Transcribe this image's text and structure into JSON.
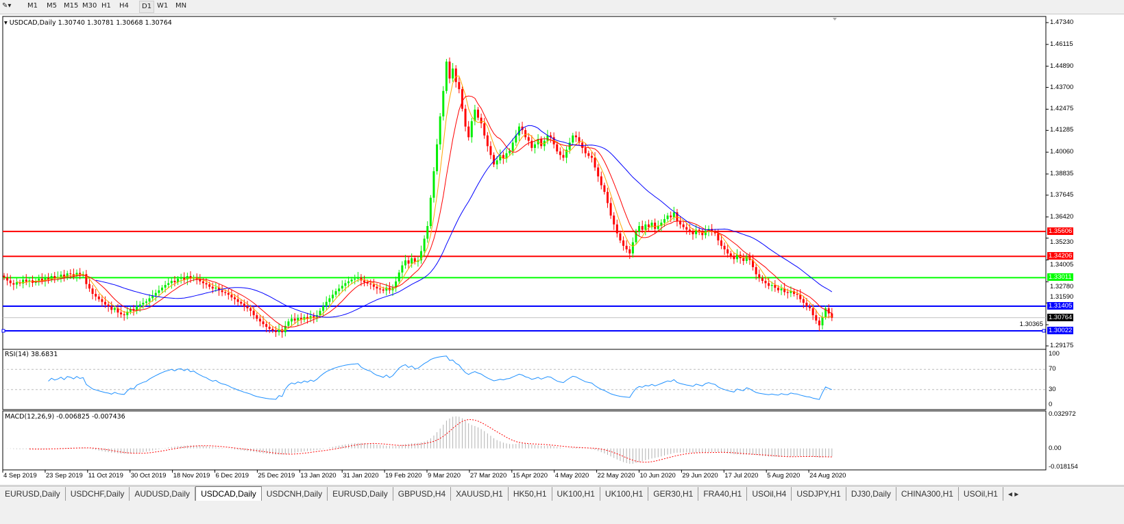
{
  "toolbar": {
    "timeframes": [
      "M1",
      "M5",
      "M15",
      "M30",
      "H1",
      "H4",
      "D1",
      "W1",
      "MN"
    ],
    "active": "D1"
  },
  "chart": {
    "header": "USDCAD,Daily  1.30740 1.30781 1.30668 1.30764",
    "price_axis": [
      "1.47340",
      "1.46115",
      "1.44890",
      "1.43700",
      "1.42475",
      "1.41285",
      "1.40060",
      "1.38835",
      "1.37645",
      "1.36420",
      "1.35230",
      "1.34005",
      "1.32780",
      "1.31590",
      "1.30365",
      "1.29175"
    ],
    "hlines": [
      {
        "value": "1.35606",
        "color": "#ff0000"
      },
      {
        "value": "1.34206",
        "color": "#ff0000"
      },
      {
        "value": "1.33011",
        "color": "#00ff00"
      },
      {
        "value": "1.31405",
        "color": "#0000ff"
      },
      {
        "value": "1.30022",
        "color": "#0000ff"
      }
    ],
    "current_price": "1.30764",
    "colors": {
      "bull": "#00ee00",
      "bear": "#ff0000",
      "ma_fast": "#ffa500",
      "ma_mid": "#ff0000",
      "ma_slow": "#0000ff"
    },
    "dates": [
      "4 Sep 2019",
      "23 Sep 2019",
      "11 Oct 2019",
      "30 Oct 2019",
      "18 Nov 2019",
      "6 Dec 2019",
      "25 Dec 2019",
      "13 Jan 2020",
      "31 Jan 2020",
      "19 Feb 2020",
      "9 Mar 2020",
      "27 Mar 2020",
      "15 Apr 2020",
      "4 May 2020",
      "22 May 2020",
      "10 Jun 2020",
      "29 Jun 2020",
      "17 Jul 2020",
      "5 Aug 2020",
      "24 Aug 2020"
    ]
  },
  "rsi": {
    "label": "RSI(14) 38.6831",
    "axis": [
      "100",
      "70",
      "30",
      "0"
    ]
  },
  "macd": {
    "label": "MACD(12,26,9) -0.006825 -0.007436",
    "axis": [
      "0.032972",
      "0.00",
      "-0.018154"
    ]
  },
  "chart_data": {
    "type": "candlestick",
    "symbol": "USDCAD",
    "timeframe": "Daily",
    "ylim": [
      1.29175,
      1.4734
    ],
    "closes": [
      1.3302,
      1.3285,
      1.327,
      1.3262,
      1.3275,
      1.3268,
      1.329,
      1.3278,
      1.3286,
      1.3272,
      1.3283,
      1.3295,
      1.3282,
      1.33,
      1.329,
      1.331,
      1.3298,
      1.3305,
      1.3318,
      1.3302,
      1.3325,
      1.3321,
      1.331,
      1.3328,
      1.3315,
      1.3321,
      1.3265,
      1.324,
      1.321,
      1.3195,
      1.318,
      1.3165,
      1.315,
      1.314,
      1.312,
      1.313,
      1.3105,
      1.3095,
      1.309,
      1.311,
      1.3125,
      1.3115,
      1.314,
      1.315,
      1.316,
      1.3167,
      1.3185,
      1.32,
      1.3215,
      1.323,
      1.3245,
      1.326,
      1.327,
      1.3283,
      1.3275,
      1.3295,
      1.33,
      1.329,
      1.331,
      1.3295,
      1.3302,
      1.329,
      1.328,
      1.327,
      1.3263,
      1.325,
      1.324,
      1.3245,
      1.323,
      1.322,
      1.3215,
      1.3205,
      1.319,
      1.318,
      1.3165,
      1.3155,
      1.314,
      1.3129,
      1.3115,
      1.309,
      1.307,
      1.3055,
      1.304,
      1.3025,
      1.3013,
      1.3005,
      1.2995,
      1.301,
      1.2994,
      1.303,
      1.3055,
      1.3071,
      1.306,
      1.3075,
      1.3065,
      1.308,
      1.307,
      1.3085,
      1.3075,
      1.309,
      1.3115,
      1.314,
      1.3165,
      1.3185,
      1.3205,
      1.3225,
      1.324,
      1.3255,
      1.327,
      1.328,
      1.329,
      1.3295,
      1.3302,
      1.3285,
      1.3275,
      1.3268,
      1.3263,
      1.325,
      1.324,
      1.3235,
      1.3228,
      1.3245,
      1.323,
      1.3244,
      1.328,
      1.333,
      1.337,
      1.3398,
      1.338,
      1.341,
      1.339,
      1.3398,
      1.345,
      1.352,
      1.3591,
      1.375,
      1.3899,
      1.405,
      1.4207,
      1.435,
      1.4515,
      1.442,
      1.4476,
      1.44,
      1.436,
      1.425,
      1.415,
      1.409,
      1.418,
      1.4245,
      1.42,
      1.4168,
      1.41,
      1.404,
      1.399,
      1.3937,
      1.396,
      1.399,
      1.397,
      1.4,
      1.4014,
      1.406,
      1.41,
      1.415,
      1.413,
      1.409,
      1.407,
      1.403,
      1.405,
      1.408,
      1.404,
      1.407,
      1.41,
      1.409,
      1.405,
      1.401,
      1.399,
      1.3975,
      1.402,
      1.406,
      1.41,
      1.409,
      1.406,
      1.403,
      1.4,
      1.3985,
      1.3975,
      1.392,
      1.387,
      1.382,
      1.3783,
      1.372,
      1.365,
      1.36,
      1.355,
      1.351,
      1.348,
      1.346,
      1.3437,
      1.35,
      1.356,
      1.3591,
      1.357,
      1.36,
      1.3585,
      1.361,
      1.3575,
      1.3591,
      1.361,
      1.363,
      1.365,
      1.364,
      1.3668,
      1.362,
      1.36,
      1.3585,
      1.3571,
      1.356,
      1.3545,
      1.357,
      1.3555,
      1.354,
      1.3565,
      1.3575,
      1.356,
      1.355,
      1.351,
      1.348,
      1.346,
      1.3437,
      1.342,
      1.3405,
      1.343,
      1.341,
      1.3395,
      1.342,
      1.34,
      1.336,
      1.332,
      1.33,
      1.3283,
      1.327,
      1.3255,
      1.326,
      1.3244,
      1.323,
      1.324,
      1.322,
      1.3215,
      1.3225,
      1.321,
      1.3205,
      1.318,
      1.316,
      1.314,
      1.3129,
      1.309,
      1.306,
      1.3033,
      1.308,
      1.3129,
      1.31,
      1.3076
    ]
  },
  "tabs": [
    "EURUSD,Daily",
    "USDCHF,Daily",
    "AUDUSD,Daily",
    "USDCAD,Daily",
    "USDCNH,Daily",
    "EURUSD,Daily",
    "GBPUSD,H4",
    "XAUUSD,H1",
    "HK50,H1",
    "UK100,H1",
    "UK100,H1",
    "GER30,H1",
    "FRA40,H1",
    "USOil,H4",
    "USDJPY,H1",
    "DJ30,Daily",
    "CHINA300,H1",
    "USOil,H1"
  ],
  "active_tab": "USDCAD,Daily"
}
